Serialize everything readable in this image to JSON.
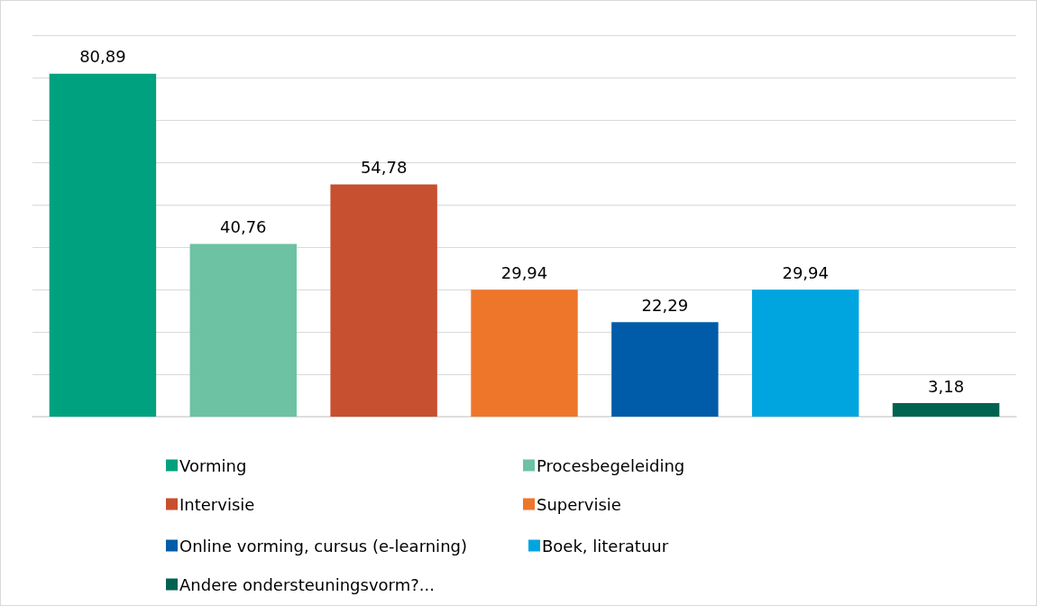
{
  "chart_data": {
    "type": "bar",
    "stacked": true,
    "categories": [
      null,
      null,
      null,
      null,
      null,
      null,
      null
    ],
    "series": [
      {
        "name": "Vorming",
        "color": "#00a17f",
        "values": [
          80.89,
          null,
          null,
          null,
          null,
          null,
          null
        ],
        "value_labels": [
          "80,89",
          null,
          null,
          null,
          null,
          null,
          null
        ]
      },
      {
        "name": "Procesbegeleiding",
        "color": "#6dc2a4",
        "values": [
          null,
          40.76,
          null,
          null,
          null,
          null,
          null
        ],
        "value_labels": [
          null,
          "40,76",
          null,
          null,
          null,
          null,
          null
        ]
      },
      {
        "name": "Intervisie",
        "color": "#c65030",
        "values": [
          null,
          null,
          54.78,
          null,
          null,
          null,
          null
        ],
        "value_labels": [
          null,
          null,
          "54,78",
          null,
          null,
          null,
          null
        ]
      },
      {
        "name": "Supervisie",
        "color": "#ee762b",
        "values": [
          null,
          null,
          null,
          29.94,
          null,
          null,
          null
        ],
        "value_labels": [
          null,
          null,
          null,
          "29,94",
          null,
          null,
          null
        ]
      },
      {
        "name": "Online vorming, cursus (e-learning)",
        "color": "#005ca8",
        "values": [
          null,
          null,
          null,
          null,
          22.29,
          null,
          null
        ],
        "value_labels": [
          null,
          null,
          null,
          null,
          "22,29",
          null,
          null
        ]
      },
      {
        "name": "Boek, literatuur",
        "color": "#00a5e0",
        "values": [
          null,
          null,
          null,
          null,
          null,
          29.94,
          null
        ],
        "value_labels": [
          null,
          null,
          null,
          null,
          null,
          "29,94",
          null
        ]
      },
      {
        "name": "Andere ondersteuningsvorm?...",
        "color": "#006350",
        "values": [
          null,
          null,
          null,
          null,
          null,
          null,
          3.18
        ],
        "value_labels": [
          null,
          null,
          null,
          null,
          null,
          null,
          "3,18"
        ]
      }
    ],
    "ylim": [
      0,
      90
    ],
    "yticks": [
      0,
      10,
      20,
      30,
      40,
      50,
      60,
      70,
      80,
      90
    ],
    "tick_labels": false,
    "grid": "y",
    "legend": "bottom"
  }
}
